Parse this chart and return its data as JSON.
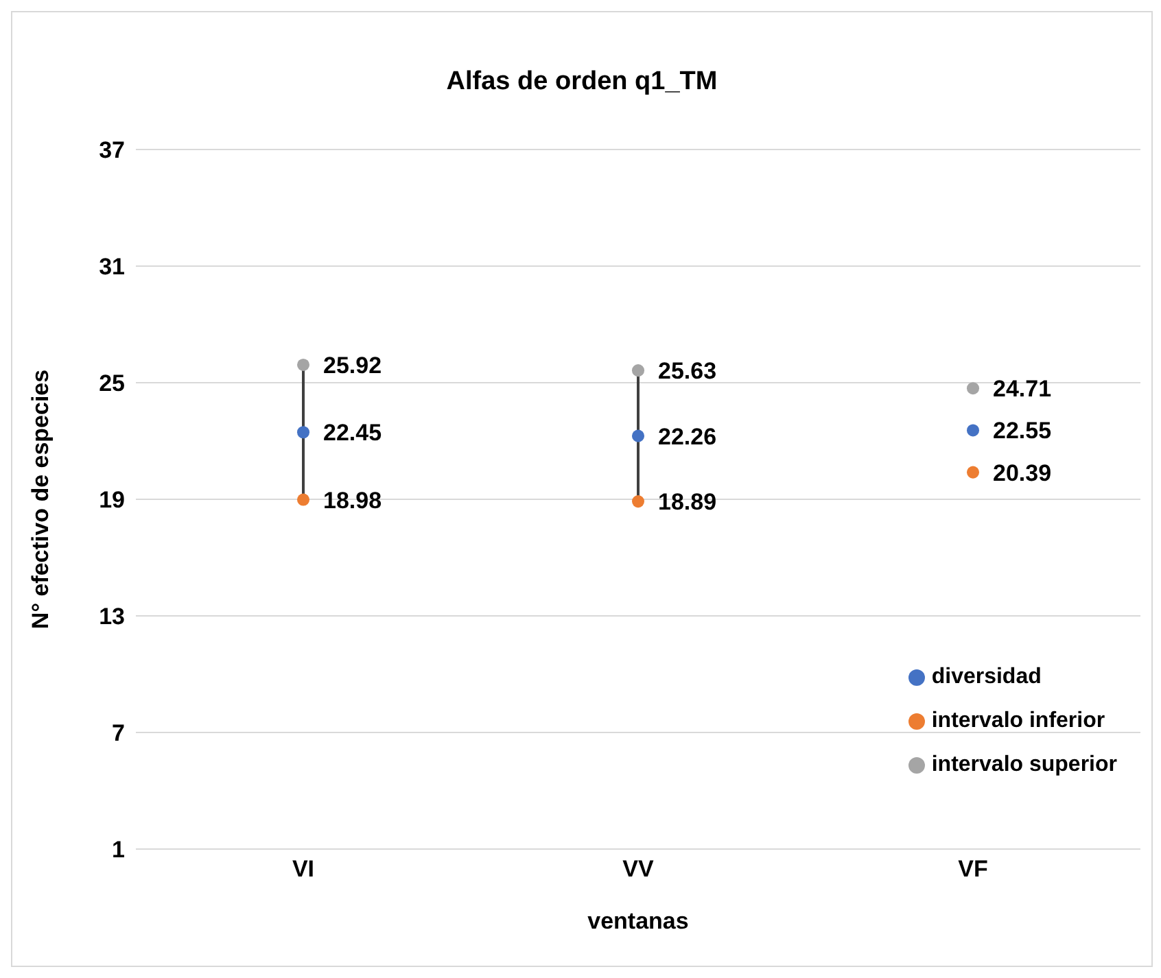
{
  "chart_data": {
    "type": "scatter",
    "title": "Alfas de orden q1_TM",
    "xlabel": "ventanas",
    "ylabel": "N° efectivo de especies",
    "categories": [
      "VI",
      "VV",
      "VF"
    ],
    "series": [
      {
        "type": "line",
        "color": "#404040",
        "x": [
          "VI",
          "VI"
        ],
        "values": [
          18.98,
          25.92
        ],
        "marker": "none",
        "value_labels": [
          null,
          null
        ]
      },
      {
        "type": "line",
        "color": "#404040",
        "x": [
          "VV",
          "VV"
        ],
        "values": [
          18.89,
          25.63
        ],
        "marker": "none",
        "value_labels": [
          null,
          null
        ]
      },
      {
        "name": "diversidad",
        "color": "#4472c4",
        "values": [
          22.45,
          22.26,
          22.55
        ]
      },
      {
        "name": "intervalo inferior",
        "color": "#ed7d31",
        "values": [
          18.98,
          18.89,
          20.39
        ]
      },
      {
        "name": "intervalo superior",
        "color": "#a5a5a5",
        "values": [
          25.92,
          25.63,
          24.71
        ]
      }
    ],
    "ylim": [
      1,
      37
    ],
    "yticks": [
      1,
      7,
      13,
      19,
      25,
      31,
      37
    ],
    "grid": "y",
    "legend": "bottom right",
    "marker": "circle",
    "data_labels": true
  }
}
